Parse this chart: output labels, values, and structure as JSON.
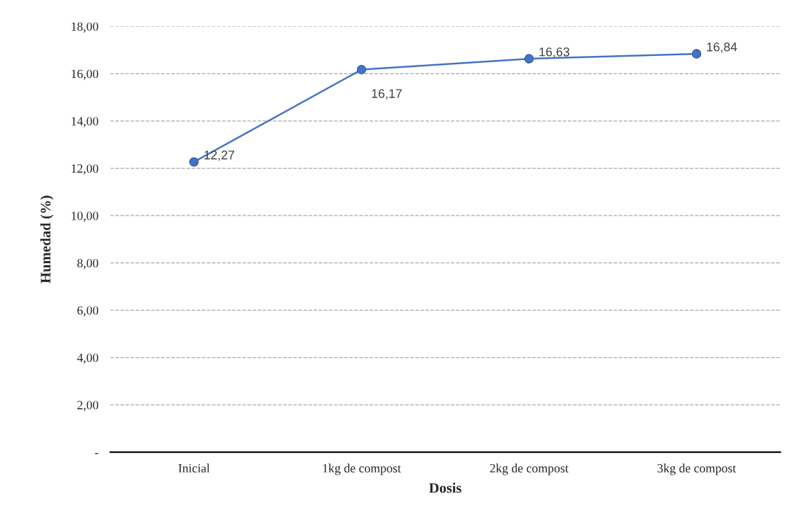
{
  "chart_data": {
    "type": "line",
    "xlabel": "Dosis",
    "ylabel": "Humedad (%)",
    "categories": [
      "Inicial",
      "1kg de compost",
      "2kg de compost",
      "3kg de compost"
    ],
    "series": [
      {
        "color": "#4472c4",
        "values": [
          12.27,
          16.17,
          16.63,
          16.84
        ],
        "value_labels": [
          "12,27",
          "16,17",
          "16,63",
          "16,84"
        ]
      }
    ],
    "ylim": [
      0,
      18
    ],
    "yticks": [
      {
        "value": 0,
        "label": "-"
      },
      {
        "value": 2,
        "label": "2,00"
      },
      {
        "value": 4,
        "label": "4,00"
      },
      {
        "value": 6,
        "label": "6,00"
      },
      {
        "value": 8,
        "label": "8,00"
      },
      {
        "value": 10,
        "label": "10,00"
      },
      {
        "value": 12,
        "label": "12,00"
      },
      {
        "value": 14,
        "label": "14,00"
      },
      {
        "value": 16,
        "label": "16,00"
      },
      {
        "value": 18,
        "label": "18,00"
      }
    ],
    "grid": "y",
    "marker": "circle",
    "line_style": "solid"
  }
}
